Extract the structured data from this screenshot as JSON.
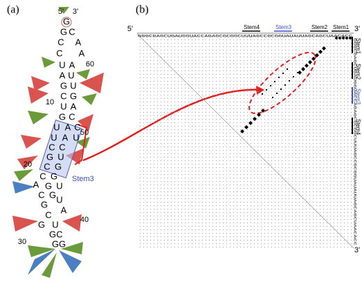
{
  "panel_a": {
    "label": "(a)",
    "five_prime": "5'",
    "three_prime": "3'",
    "nucleotides": [
      "G",
      "G",
      "C",
      "C",
      "A",
      "C",
      "A",
      "U",
      "A",
      "A",
      "U",
      "G",
      "U",
      "C",
      "G",
      "U",
      "A",
      "G",
      "C",
      "U",
      "A",
      "C",
      "U",
      "A",
      "U",
      "C",
      "C",
      "G",
      "U",
      "C",
      "G",
      "C",
      "G",
      "A",
      "G",
      "U",
      "C",
      "G",
      "G",
      "U",
      "C",
      "A",
      "G",
      "U",
      "G",
      "C",
      "G",
      "G"
    ],
    "position_labels": [
      "60",
      "10",
      "50",
      "20",
      "40",
      "30"
    ],
    "stem_label": "Stem3"
  },
  "panel_b": {
    "label": "(b)",
    "five_prime": "5'",
    "three_prime": "3'",
    "sequence": "GGGCGAGCUGAUGGUACCAGAGCGCGGCUUUAGCCGCGGUAUAUUAGCAGCUAACACC",
    "top_stems": [
      "Stem4",
      "Stem3",
      "Stem2",
      "Stem1"
    ],
    "side_stems": [
      "Stem1",
      "Stem2",
      "Stem3",
      "Stem4"
    ]
  }
}
